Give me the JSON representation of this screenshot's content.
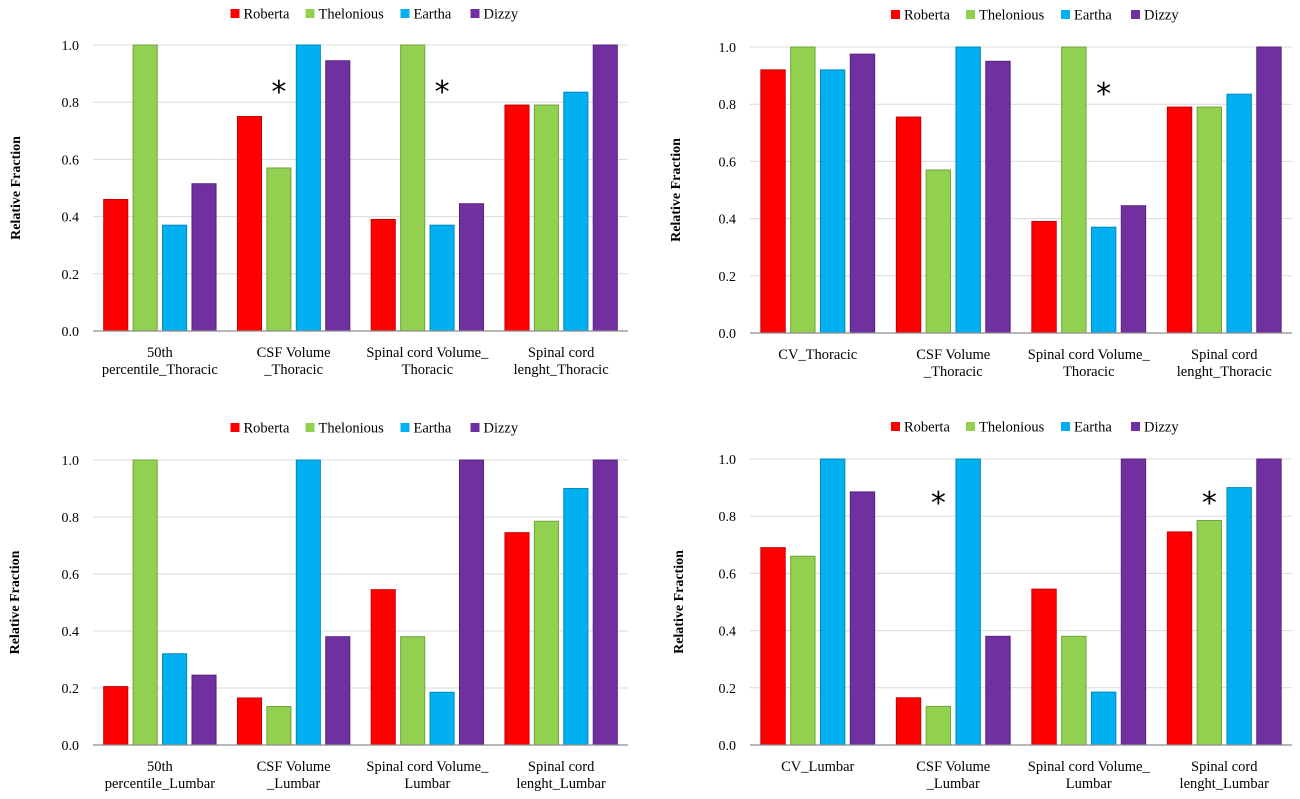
{
  "colors": {
    "Roberta": "#ff0000",
    "Thelonious": "#92d050",
    "Eartha": "#00b0f0",
    "Dizzy": "#7030a0"
  },
  "chart_data": [
    {
      "type": "bar",
      "title": "",
      "xlabel": "",
      "ylabel": "Relative Fraction",
      "ylim": [
        0,
        1.0
      ],
      "yticks": [
        "0.0",
        "0.2",
        "0.4",
        "0.6",
        "0.8",
        "1.0"
      ],
      "legend": [
        "Roberta",
        "Thelonious",
        "Eartha",
        "Dizzy"
      ],
      "legend_position": "top",
      "categories": [
        [
          "50th",
          "percentile_Thoracic"
        ],
        [
          "CSF Volume",
          "_Thoracic"
        ],
        [
          "Spinal cord Volume_",
          "Thoracic"
        ],
        [
          "Spinal cord",
          "lenght_Thoracic"
        ]
      ],
      "series": [
        {
          "name": "Roberta",
          "values": [
            0.46,
            0.75,
            0.39,
            0.79
          ]
        },
        {
          "name": "Thelonious",
          "values": [
            1.0,
            0.57,
            1.0,
            0.79
          ]
        },
        {
          "name": "Eartha",
          "values": [
            0.37,
            1.0,
            0.37,
            0.835
          ]
        },
        {
          "name": "Dizzy",
          "values": [
            0.515,
            0.945,
            0.445,
            1.0
          ]
        }
      ],
      "annotations": [
        {
          "text": "*",
          "category": 1,
          "series": 1,
          "y": 0.85
        },
        {
          "text": "*",
          "category": 2,
          "series": 2,
          "y": 0.85
        }
      ]
    },
    {
      "type": "bar",
      "title": "",
      "xlabel": "",
      "ylabel": "Relative Fraction",
      "ylim": [
        0,
        1.0
      ],
      "yticks": [
        "0.0",
        "0.2",
        "0.4",
        "0.6",
        "0.8",
        "1.0"
      ],
      "legend": [
        "Roberta",
        "Thelonious",
        "Eartha",
        "Dizzy"
      ],
      "legend_position": "top",
      "categories": [
        [
          "CV_Thoracic"
        ],
        [
          "CSF Volume",
          "_Thoracic"
        ],
        [
          "Spinal cord Volume_",
          "Thoracic"
        ],
        [
          "Spinal cord",
          "lenght_Thoracic"
        ]
      ],
      "series": [
        {
          "name": "Roberta",
          "values": [
            0.92,
            0.755,
            0.39,
            0.79
          ]
        },
        {
          "name": "Thelonious",
          "values": [
            1.0,
            0.57,
            1.0,
            0.79
          ]
        },
        {
          "name": "Eartha",
          "values": [
            0.92,
            1.0,
            0.37,
            0.835
          ]
        },
        {
          "name": "Dizzy",
          "values": [
            0.975,
            0.95,
            0.445,
            1.0
          ]
        }
      ],
      "annotations": [
        {
          "text": "*",
          "category": 2,
          "series": 2,
          "y": 0.85
        }
      ]
    },
    {
      "type": "bar",
      "title": "",
      "xlabel": "",
      "ylabel": "Relative Fraction",
      "ylim": [
        0,
        1.0
      ],
      "yticks": [
        "0.0",
        "0.2",
        "0.4",
        "0.6",
        "0.8",
        "1.0"
      ],
      "legend": [
        "Roberta",
        "Thelonious",
        "Eartha",
        "Dizzy"
      ],
      "legend_position": "top",
      "categories": [
        [
          "50th",
          "percentile_Lumbar"
        ],
        [
          "CSF Volume",
          "_Lumbar"
        ],
        [
          "Spinal cord Volume_",
          "Lumbar"
        ],
        [
          "Spinal cord",
          "lenght_Lumbar"
        ]
      ],
      "series": [
        {
          "name": "Roberta",
          "values": [
            0.205,
            0.165,
            0.545,
            0.745
          ]
        },
        {
          "name": "Thelonious",
          "values": [
            1.0,
            0.135,
            0.38,
            0.785
          ]
        },
        {
          "name": "Eartha",
          "values": [
            0.32,
            1.0,
            0.185,
            0.9
          ]
        },
        {
          "name": "Dizzy",
          "values": [
            0.245,
            0.38,
            1.0,
            1.0
          ]
        }
      ],
      "annotations": []
    },
    {
      "type": "bar",
      "title": "",
      "xlabel": "",
      "ylabel": "Relative Fraction",
      "ylim": [
        0,
        1.0
      ],
      "yticks": [
        "0.0",
        "0.2",
        "0.4",
        "0.6",
        "0.8",
        "1.0"
      ],
      "legend": [
        "Roberta",
        "Thelonious",
        "Eartha",
        "Dizzy"
      ],
      "legend_position": "top",
      "categories": [
        [
          "CV_Lumbar"
        ],
        [
          "CSF Volume",
          "_Lumbar"
        ],
        [
          "Spinal cord Volume_",
          "Lumbar"
        ],
        [
          "Spinal cord",
          "lenght_Lumbar"
        ]
      ],
      "series": [
        {
          "name": "Roberta",
          "values": [
            0.69,
            0.165,
            0.545,
            0.745
          ]
        },
        {
          "name": "Thelonious",
          "values": [
            0.66,
            0.135,
            0.38,
            0.785
          ]
        },
        {
          "name": "Eartha",
          "values": [
            1.0,
            1.0,
            0.185,
            0.9
          ]
        },
        {
          "name": "Dizzy",
          "values": [
            0.885,
            0.38,
            1.0,
            1.0
          ]
        }
      ],
      "annotations": [
        {
          "text": "*",
          "category": 1,
          "series": 1,
          "y": 0.86
        },
        {
          "text": "*",
          "category": 3,
          "series": 1,
          "y": 0.86
        }
      ]
    }
  ]
}
